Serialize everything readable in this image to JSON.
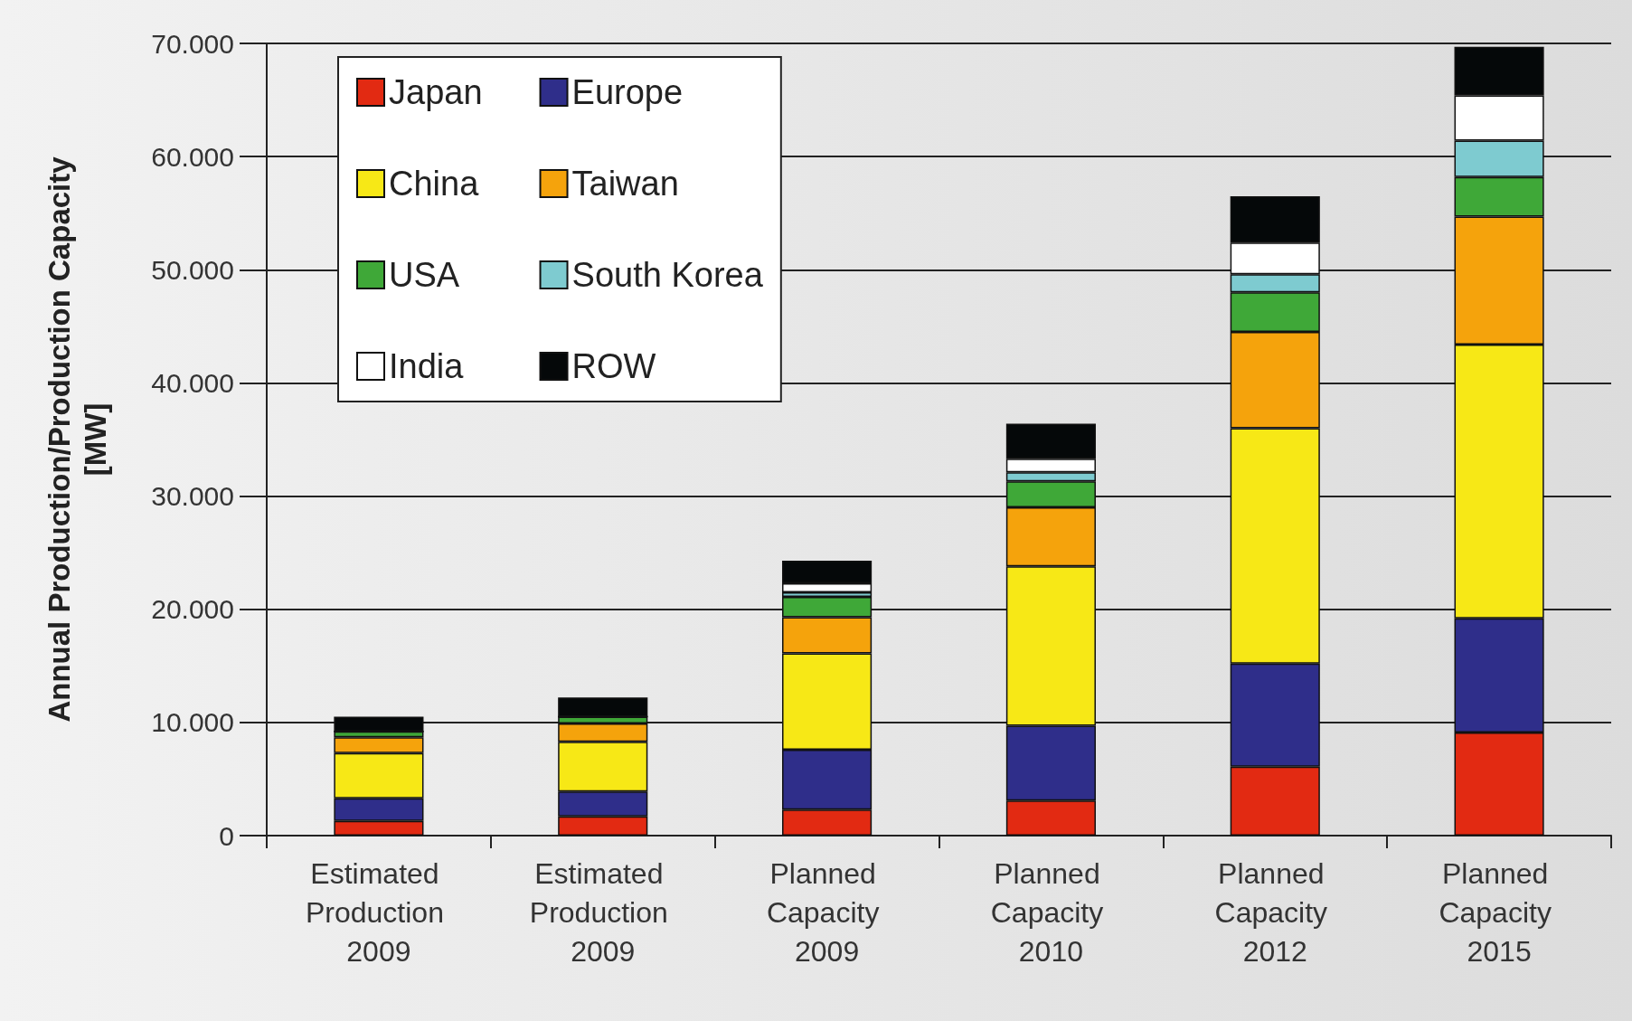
{
  "chart_data": {
    "type": "bar",
    "stacked": true,
    "ylabel": "Annual Production/Production Capacity [MW]",
    "categories": [
      "Estimated Production 2009",
      "Estimated Production 2009",
      "Planned Capacity 2009",
      "Planned Capacity 2010",
      "Planned Capacity 2012",
      "Planned Capacity 2015"
    ],
    "series": [
      {
        "name": "Japan",
        "color": "#e22a12",
        "values": [
          1300,
          1700,
          2300,
          3100,
          6100,
          9100
        ]
      },
      {
        "name": "Europe",
        "color": "#2f2e8a",
        "values": [
          2000,
          2200,
          5300,
          6600,
          9100,
          10100
        ]
      },
      {
        "name": "China",
        "color": "#f7e816",
        "values": [
          4000,
          4400,
          8500,
          14100,
          20800,
          24200
        ]
      },
      {
        "name": "Taiwan",
        "color": "#f5a30c",
        "values": [
          1400,
          1600,
          3200,
          5200,
          8500,
          11300
        ]
      },
      {
        "name": "USA",
        "color": "#3fa838",
        "values": [
          500,
          600,
          1800,
          2300,
          3500,
          3500
        ]
      },
      {
        "name": "South Korea",
        "color": "#7ecbd0",
        "values": [
          0,
          0,
          400,
          800,
          1600,
          3200
        ]
      },
      {
        "name": "India",
        "color": "#ffffff",
        "values": [
          0,
          0,
          800,
          1200,
          2800,
          4000
        ]
      },
      {
        "name": "ROW",
        "color": "#050809",
        "values": [
          1300,
          1700,
          2000,
          3100,
          4100,
          4300
        ]
      }
    ],
    "ylim": [
      0,
      70000
    ],
    "yticks": [
      0,
      {
        "value": 10000,
        "label": "10.000"
      },
      {
        "value": 20000,
        "label": "20.000"
      },
      {
        "value": 30000,
        "label": "30.000"
      },
      {
        "value": 40000,
        "label": "40.000"
      },
      {
        "value": 50000,
        "label": "50.000"
      },
      {
        "value": 60000,
        "label": "60.000"
      },
      {
        "value": 70000,
        "label": "70.000"
      }
    ],
    "grid": "y",
    "legend": "top left"
  }
}
